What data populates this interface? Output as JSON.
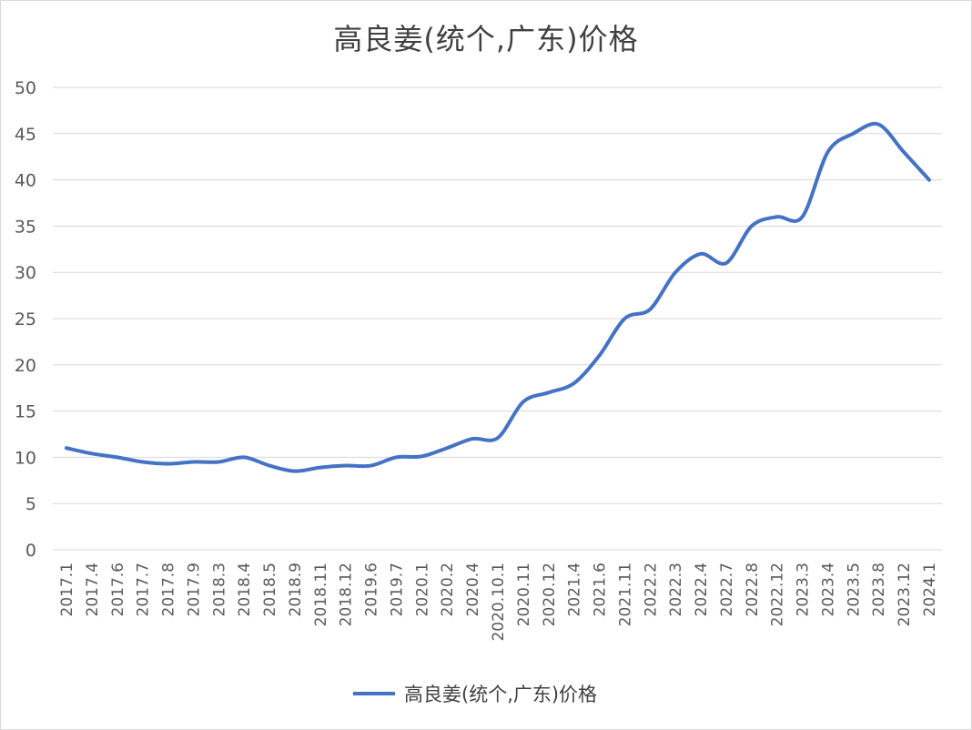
{
  "chart_data": {
    "type": "line",
    "title": "高良姜(统个,广东)价格",
    "xlabel": "",
    "ylabel": "",
    "ylim": [
      0,
      50
    ],
    "yticks": [
      0,
      5,
      10,
      15,
      20,
      25,
      30,
      35,
      40,
      45,
      50
    ],
    "grid": true,
    "legend_position": "bottom",
    "categories": [
      "2017.1",
      "2017.4",
      "2017.6",
      "2017.7",
      "2017.8",
      "2017.9",
      "2018.3",
      "2018.4",
      "2018.5",
      "2018.9",
      "2018.11",
      "2018.12",
      "2019.6",
      "2019.7",
      "2020.1",
      "2020.2",
      "2020.4",
      "2020.10.1",
      "2020.11",
      "2020.12",
      "2021.4",
      "2021.6",
      "2021.11",
      "2022.2",
      "2022.3",
      "2022.4",
      "2022.7",
      "2022.8",
      "2022.12",
      "2023.3",
      "2023.4",
      "2023.5",
      "2023.8",
      "2023.12",
      "2024.1"
    ],
    "series": [
      {
        "name": "高良姜(统个,广东)价格",
        "color": "#4472c4",
        "values": [
          11,
          10.4,
          10,
          9.5,
          9.3,
          9.5,
          9.5,
          10,
          9.1,
          8.5,
          8.9,
          9.1,
          9.1,
          10,
          10.1,
          11,
          12,
          12.1,
          16,
          17,
          18,
          21,
          25,
          26,
          30,
          32,
          31,
          35,
          36,
          36,
          43,
          45,
          46,
          43,
          40
        ]
      }
    ]
  }
}
